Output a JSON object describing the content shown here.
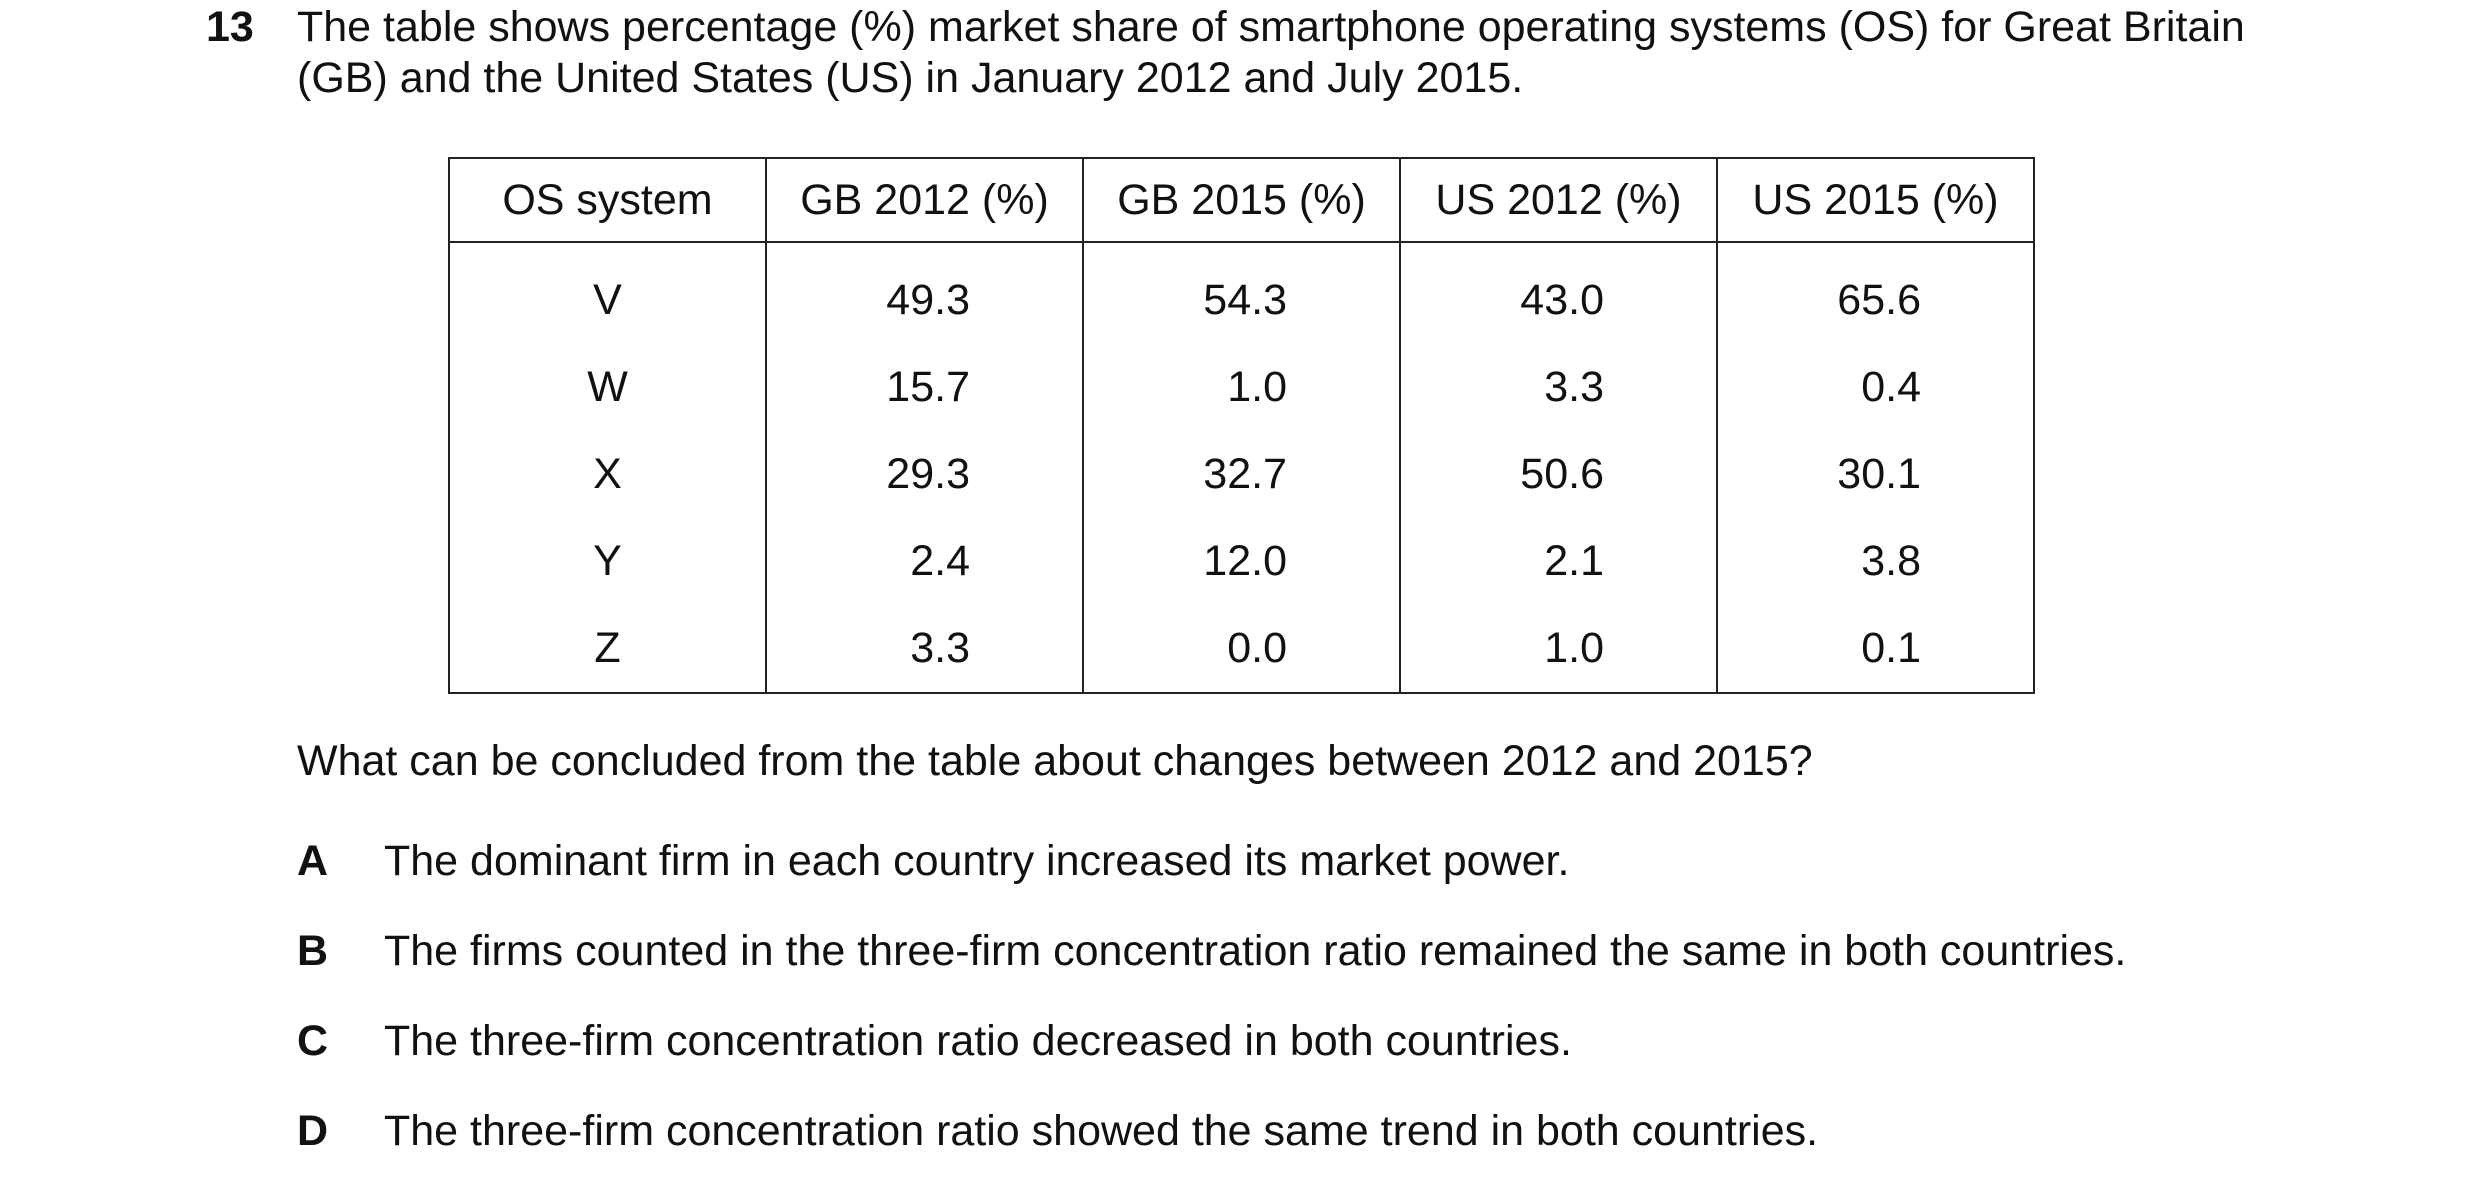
{
  "question": {
    "number": "13",
    "stem": "The table shows percentage (%) market share of smartphone operating systems (OS) for Great Britain (GB) and the United States (US) in January 2012 and July 2015."
  },
  "table": {
    "header": [
      "OS system",
      "GB 2012 (%)",
      "GB 2015 (%)",
      "US 2012 (%)",
      "US 2015 (%)"
    ],
    "rows": [
      [
        "V",
        "49.3",
        "54.3",
        "43.0",
        "65.6"
      ],
      [
        "W",
        "15.7",
        "1.0",
        "3.3",
        "0.4"
      ],
      [
        "X",
        "29.3",
        "32.7",
        "50.6",
        "30.1"
      ],
      [
        "Y",
        "2.4",
        "12.0",
        "2.1",
        "3.8"
      ],
      [
        "Z",
        "3.3",
        "0.0",
        "1.0",
        "0.1"
      ]
    ]
  },
  "prompt": "What can be concluded from the table about changes between 2012 and 2015?",
  "options": [
    {
      "letter": "A",
      "text": "The dominant firm in each country increased its market power."
    },
    {
      "letter": "B",
      "text": "The firms counted in the three-firm concentration ratio remained the same in both countries."
    },
    {
      "letter": "C",
      "text": "The three-firm concentration ratio decreased in both countries."
    },
    {
      "letter": "D",
      "text": "The three-firm concentration ratio showed the same trend in both countries."
    }
  ]
}
